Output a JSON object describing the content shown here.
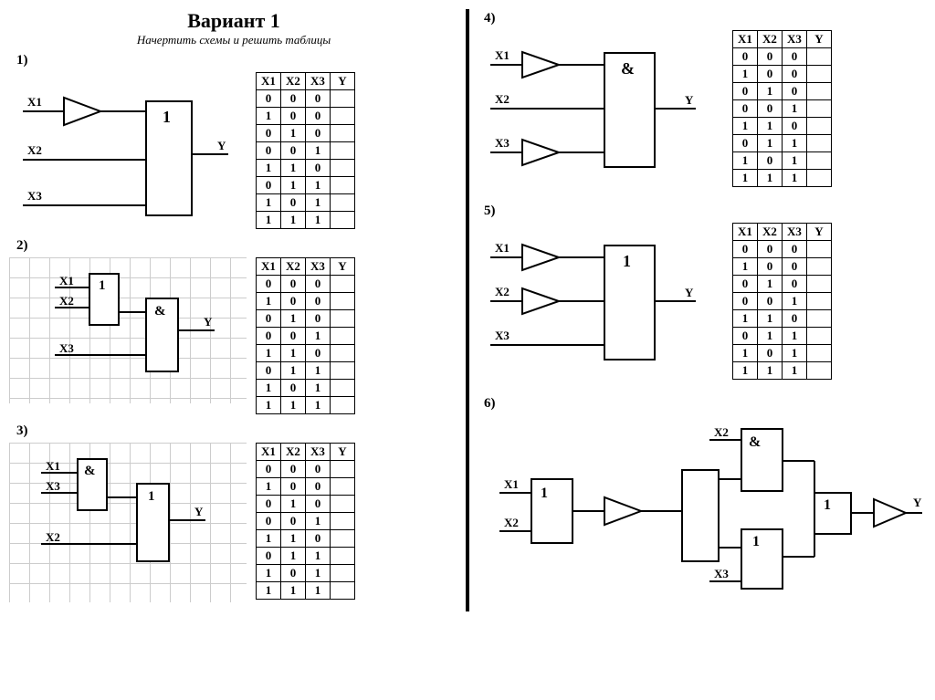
{
  "page": {
    "title": "Вариант 1",
    "subtitle": "Начертить схемы и решить таблицы",
    "colors": {
      "stroke": "#000000",
      "background": "#ffffff",
      "grid": "#cccccc"
    },
    "table_headers": [
      "X1",
      "X2",
      "X3",
      "Y"
    ],
    "truth_rows": [
      [
        "0",
        "0",
        "0",
        ""
      ],
      [
        "1",
        "0",
        "0",
        ""
      ],
      [
        "0",
        "1",
        "0",
        ""
      ],
      [
        "0",
        "0",
        "1",
        ""
      ],
      [
        "1",
        "1",
        "0",
        ""
      ],
      [
        "0",
        "1",
        "1",
        ""
      ],
      [
        "1",
        "0",
        "1",
        ""
      ],
      [
        "1",
        "1",
        "1",
        ""
      ]
    ]
  },
  "left": {
    "problems": [
      {
        "num": "1)",
        "circuit": {
          "type": "inverter_into_or",
          "inputs": [
            "X1",
            "X2",
            "X3"
          ],
          "gate_label": "1",
          "output": "Y",
          "inverter_on": "X1",
          "grid": false
        }
      },
      {
        "num": "2)",
        "circuit": {
          "type": "or_then_and",
          "inputs": [
            "X1",
            "X2",
            "X3"
          ],
          "or_label": "1",
          "and_label": "&",
          "output": "Y",
          "or_inputs": [
            "X1",
            "X2"
          ],
          "grid": true
        }
      },
      {
        "num": "3)",
        "circuit": {
          "type": "and_then_or",
          "inputs": [
            "X1",
            "X3",
            "X2"
          ],
          "and_label": "&",
          "or_label": "1",
          "output": "Y",
          "and_inputs": [
            "X1",
            "X3"
          ],
          "grid": true
        }
      }
    ]
  },
  "right": {
    "problems": [
      {
        "num": "4)",
        "circuit": {
          "type": "two_inverters_and",
          "inputs": [
            "X1",
            "X2",
            "X3"
          ],
          "gate_label": "&",
          "output": "Y",
          "inverters_on": [
            "X1",
            "X3"
          ]
        }
      },
      {
        "num": "5)",
        "circuit": {
          "type": "two_inverters_or",
          "inputs": [
            "X1",
            "X2",
            "X3"
          ],
          "gate_label": "1",
          "output": "Y",
          "inverters_on": [
            "X1",
            "X2"
          ]
        }
      },
      {
        "num": "6)",
        "circuit": {
          "type": "complex",
          "inputs": [
            "X1",
            "X2",
            "X3"
          ],
          "output": "Y",
          "gates": [
            "1",
            "&",
            "1",
            "1"
          ],
          "no_table": true
        }
      }
    ]
  }
}
